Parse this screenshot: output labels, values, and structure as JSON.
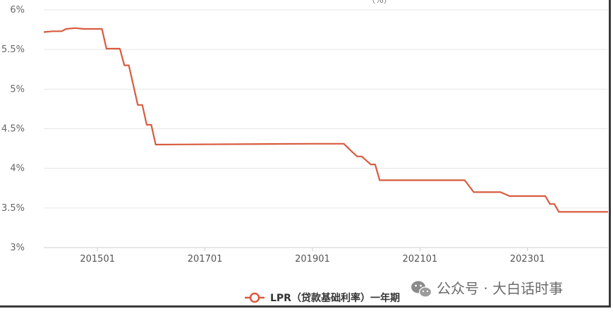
{
  "chart_data": {
    "type": "line",
    "title": "",
    "xlabel": "",
    "ylabel": "",
    "ylim": [
      3,
      6
    ],
    "y_ticks": [
      "3%",
      "3.5%",
      "4%",
      "4.5%",
      "5%",
      "5.5%",
      "6%"
    ],
    "x_tick_labels": [
      "201501",
      "201701",
      "201901",
      "202101",
      "202301"
    ],
    "x_range": [
      "201401",
      "202407"
    ],
    "grid": "horizontal",
    "legend_position": "bottom-center",
    "series": [
      {
        "name": "LPR（贷款基础利率）一年期",
        "color": "#d85b40",
        "points": [
          [
            "201401",
            5.72
          ],
          [
            "201403",
            5.73
          ],
          [
            "201405",
            5.73
          ],
          [
            "201406",
            5.76
          ],
          [
            "201408",
            5.77
          ],
          [
            "201410",
            5.76
          ],
          [
            "201412",
            5.76
          ],
          [
            "201502",
            5.76
          ],
          [
            "201503",
            5.51
          ],
          [
            "201506",
            5.51
          ],
          [
            "201507",
            5.3
          ],
          [
            "201508",
            5.3
          ],
          [
            "201509",
            5.05
          ],
          [
            "201510",
            4.8
          ],
          [
            "201511",
            4.8
          ],
          [
            "201512",
            4.55
          ],
          [
            "201601",
            4.55
          ],
          [
            "201602",
            4.3
          ],
          [
            "201901",
            4.31
          ],
          [
            "201908",
            4.31
          ],
          [
            "201910",
            4.2
          ],
          [
            "201911",
            4.15
          ],
          [
            "201912",
            4.15
          ],
          [
            "202002",
            4.05
          ],
          [
            "202003",
            4.05
          ],
          [
            "202004",
            3.85
          ],
          [
            "202111",
            3.85
          ],
          [
            "202201",
            3.7
          ],
          [
            "202207",
            3.7
          ],
          [
            "202209",
            3.65
          ],
          [
            "202305",
            3.65
          ],
          [
            "202306",
            3.55
          ],
          [
            "202307",
            3.55
          ],
          [
            "202308",
            3.45
          ],
          [
            "202407",
            3.45
          ]
        ]
      }
    ]
  },
  "legend": {
    "label": "LPR（贷款基础利率）一年期"
  },
  "watermark": {
    "text": "公众号 · 大白话时事",
    "icon": "wechat-icon"
  },
  "top_partial": {
    "text": "（%）"
  }
}
